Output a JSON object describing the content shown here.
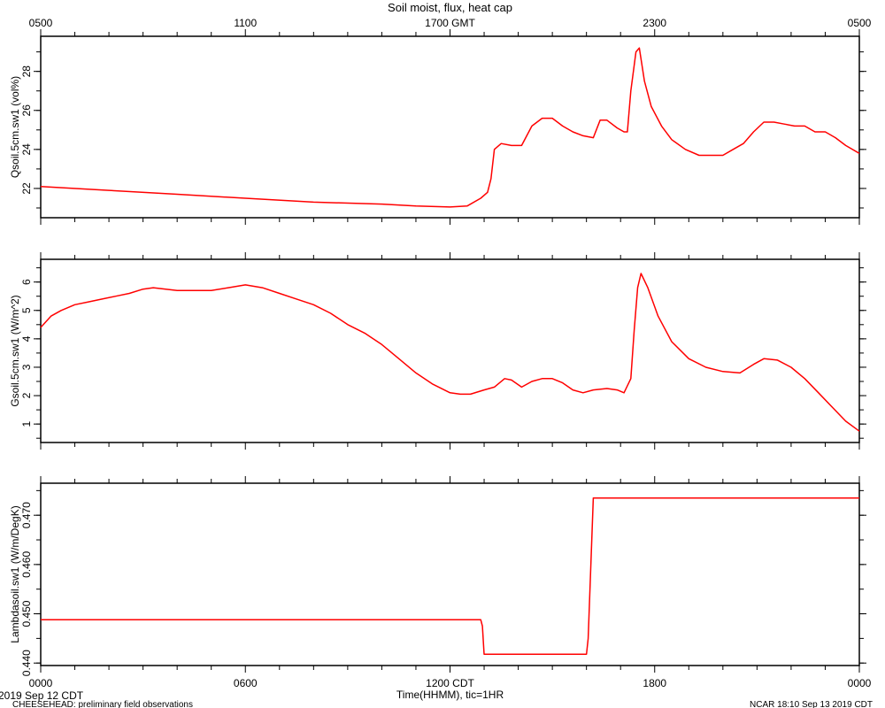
{
  "title": "Soil moist, flux, heat cap",
  "top_axis": {
    "ticks": [
      {
        "hour": 0,
        "label": "0500"
      },
      {
        "hour": 6,
        "label": "1100"
      },
      {
        "hour": 12,
        "label": "1700 GMT"
      },
      {
        "hour": 18,
        "label": "2300"
      },
      {
        "hour": 24,
        "label": "0500"
      }
    ]
  },
  "bottom_axis": {
    "ticks": [
      {
        "hour": 0,
        "label": "0000"
      },
      {
        "hour": 6,
        "label": "0600"
      },
      {
        "hour": 12,
        "label": "1200 CDT"
      },
      {
        "hour": 18,
        "label": "1800"
      },
      {
        "hour": 24,
        "label": "0000"
      }
    ],
    "xlabel": "Time(HHMM), tic=1HR",
    "date_label": "2019 Sep 12 CDT"
  },
  "footer": {
    "left": "CHEESEHEAD: preliminary field observations",
    "right": "NCAR 18:10 Sep 13 2019 CDT"
  },
  "colors": {
    "line": "#ff0000",
    "axis": "#000000",
    "background": "#ffffff"
  },
  "chart_data": [
    {
      "type": "line",
      "ylabel": "Qsoil.5cm.sw1 (vol%)",
      "xlabel": "Time(HHMM), tic=1HR",
      "xlim": [
        0,
        24
      ],
      "ylim": [
        20.5,
        29.8
      ],
      "yticks": [
        22,
        24,
        26,
        28
      ],
      "yticklabels": [
        "22",
        "24",
        "26",
        "28"
      ],
      "series": [
        {
          "x": [
            0,
            2,
            4,
            6,
            8,
            10,
            11,
            12,
            12.5,
            12.9,
            13.1,
            13.2,
            13.3,
            13.5,
            13.8,
            14.1,
            14.4,
            14.7,
            15.0,
            15.3,
            15.6,
            15.9,
            16.2,
            16.4,
            16.6,
            16.9,
            17.1,
            17.2,
            17.3,
            17.45,
            17.55,
            17.7,
            17.9,
            18.2,
            18.5,
            18.9,
            19.3,
            19.6,
            20.0,
            20.3,
            20.6,
            20.9,
            21.2,
            21.5,
            21.8,
            22.1,
            22.4,
            22.7,
            23.0,
            23.3,
            23.6,
            24.0
          ],
          "y": [
            22.1,
            21.9,
            21.7,
            21.5,
            21.3,
            21.2,
            21.1,
            21.05,
            21.1,
            21.5,
            21.8,
            22.5,
            24.0,
            24.3,
            24.2,
            24.2,
            25.2,
            25.6,
            25.6,
            25.2,
            24.9,
            24.7,
            24.6,
            25.5,
            25.5,
            25.1,
            24.9,
            24.9,
            27.0,
            29.0,
            29.2,
            27.5,
            26.2,
            25.2,
            24.5,
            24.0,
            23.7,
            23.7,
            23.7,
            24.0,
            24.3,
            24.9,
            25.4,
            25.4,
            25.3,
            25.2,
            25.2,
            24.9,
            24.9,
            24.6,
            24.2,
            23.8
          ]
        }
      ]
    },
    {
      "type": "line",
      "ylabel": "Gsoil.5cm.sw1 (W/m^2)",
      "xlabel": "Time(HHMM), tic=1HR",
      "xlim": [
        0,
        24
      ],
      "ylim": [
        0.35,
        6.8
      ],
      "yticks": [
        1,
        2,
        3,
        4,
        5,
        6
      ],
      "yticklabels": [
        "1",
        "2",
        "3",
        "4",
        "5",
        "6"
      ],
      "series": [
        {
          "x": [
            0,
            0.3,
            0.6,
            1.0,
            1.4,
            1.8,
            2.2,
            2.6,
            3.0,
            3.3,
            4.0,
            5.0,
            5.5,
            6.0,
            6.5,
            7.0,
            7.5,
            8.0,
            8.5,
            9.0,
            9.5,
            10.0,
            10.5,
            11.0,
            11.5,
            12.0,
            12.3,
            12.6,
            13.0,
            13.3,
            13.6,
            13.8,
            14.1,
            14.4,
            14.7,
            15.0,
            15.3,
            15.6,
            15.9,
            16.2,
            16.6,
            16.9,
            17.1,
            17.3,
            17.4,
            17.5,
            17.6,
            17.8,
            18.1,
            18.5,
            19.0,
            19.5,
            20.0,
            20.5,
            20.9,
            21.2,
            21.6,
            22.0,
            22.4,
            22.8,
            23.2,
            23.6,
            24.0
          ],
          "y": [
            4.4,
            4.8,
            5.0,
            5.2,
            5.3,
            5.4,
            5.5,
            5.6,
            5.75,
            5.8,
            5.7,
            5.7,
            5.8,
            5.9,
            5.8,
            5.6,
            5.4,
            5.2,
            4.9,
            4.5,
            4.2,
            3.8,
            3.3,
            2.8,
            2.4,
            2.1,
            2.05,
            2.05,
            2.2,
            2.3,
            2.6,
            2.55,
            2.3,
            2.5,
            2.6,
            2.6,
            2.45,
            2.2,
            2.1,
            2.2,
            2.25,
            2.2,
            2.1,
            2.6,
            4.3,
            5.8,
            6.3,
            5.8,
            4.8,
            3.9,
            3.3,
            3.0,
            2.85,
            2.8,
            3.1,
            3.3,
            3.25,
            3.0,
            2.6,
            2.1,
            1.6,
            1.1,
            0.75
          ]
        }
      ]
    },
    {
      "type": "line",
      "ylabel": "Lambdasoil.sw1 (W/m/DegK)",
      "xlabel": "Time(HHMM), tic=1HR",
      "xlim": [
        0,
        24
      ],
      "ylim": [
        0.4395,
        0.4765
      ],
      "yticks": [
        0.44,
        0.45,
        0.46,
        0.47
      ],
      "yticklabels": [
        "0.440",
        "0.450",
        "0.460",
        "0.470"
      ],
      "series": [
        {
          "x": [
            0,
            12.9,
            12.95,
            13.0,
            16.0,
            16.05,
            16.2,
            24.0
          ],
          "y": [
            0.4488,
            0.4488,
            0.4475,
            0.4418,
            0.4418,
            0.445,
            0.4735,
            0.4735
          ]
        }
      ]
    }
  ]
}
